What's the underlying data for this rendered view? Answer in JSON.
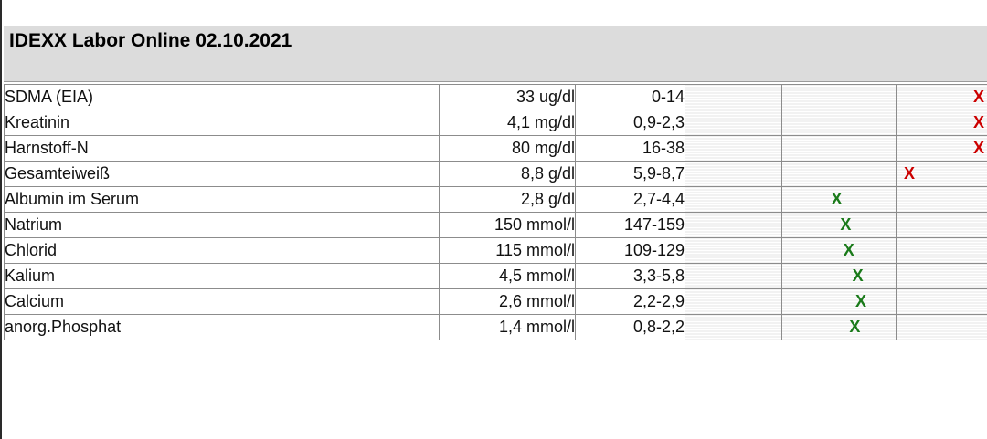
{
  "report": {
    "title": "IDEXX Labor Online 02.10.2021"
  },
  "colors": {
    "high": "#cc0000",
    "normal": "#1a7a1a"
  },
  "rows": [
    {
      "name": "SDMA (EIA)",
      "value": "33 ug/dl",
      "range": "0-14",
      "mark": "X",
      "status": "high",
      "level": 1.0
    },
    {
      "name": "Kreatinin",
      "value": "4,1 mg/dl",
      "range": "0,9-2,3",
      "mark": "X",
      "status": "high",
      "level": 1.0
    },
    {
      "name": "Harnstoff-N",
      "value": "80 mg/dl",
      "range": "16-38",
      "mark": "X",
      "status": "high",
      "level": 1.0
    },
    {
      "name": "Gesamteiweiß",
      "value": "8,8 g/dl",
      "range": "5,9-8,7",
      "mark": "X",
      "status": "high",
      "level": 0.74
    },
    {
      "name": "Albumin im Serum",
      "value": "2,8 g/dl",
      "range": "2,7-4,4",
      "mark": "X",
      "status": "normal",
      "level": 0.5
    },
    {
      "name": "Natrium",
      "value": "150 mmol/l",
      "range": "147-159",
      "mark": "X",
      "status": "normal",
      "level": 0.53
    },
    {
      "name": "Chlorid",
      "value": "115 mmol/l",
      "range": "109-129",
      "mark": "X",
      "status": "normal",
      "level": 0.54
    },
    {
      "name": "Kalium",
      "value": "4,5 mmol/l",
      "range": "3,3-5,8",
      "mark": "X",
      "status": "normal",
      "level": 0.57
    },
    {
      "name": "Calcium",
      "value": "2,6 mmol/l",
      "range": "2,2-2,9",
      "mark": "X",
      "status": "normal",
      "level": 0.58
    },
    {
      "name": "anorg.Phosphat",
      "value": "1,4 mmol/l",
      "range": "0,8-2,2",
      "mark": "X",
      "status": "normal",
      "level": 0.56
    }
  ]
}
